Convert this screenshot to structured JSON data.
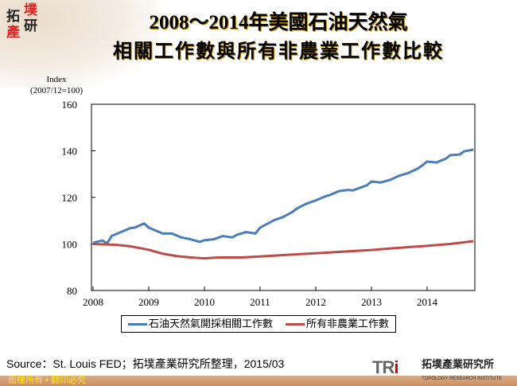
{
  "logo": {
    "chars": [
      "拓",
      "墣",
      "產",
      "研"
    ]
  },
  "title": {
    "line1": "2008～2014年美國石油天然氣",
    "line2": "相關工作數與所有非農業工作數比較"
  },
  "footer": {
    "source": "Source：St. Louis FED；拓墣產業研究所整理，2015/03",
    "copyright": "版權所有 • 翻印必究",
    "brand_logo": "TRi",
    "brand_zh": "拓墣產業研究所",
    "brand_en": "TOPOLOGY RESEARCH INSTITUTE"
  },
  "chart_data": {
    "type": "line",
    "ylabel": "Index\n(2007/12=100)",
    "ylabel_line1": "Index",
    "ylabel_line2": "(2007/12=100)",
    "ylim": [
      80,
      160
    ],
    "yticks": [
      "80",
      "100",
      "120",
      "140",
      "160"
    ],
    "xlim": [
      "2008-01",
      "2014-12"
    ],
    "xticks": [
      "2008",
      "2009",
      "2010",
      "2011",
      "2012",
      "2013",
      "2014"
    ],
    "grid": false,
    "legend": "bottom",
    "series": [
      {
        "name": "石油天然氣開採相關工作數",
        "color": "#4a7ebb",
        "points": [
          [
            "2008-01",
            100.5
          ],
          [
            "2008-03",
            101.5
          ],
          [
            "2008-04",
            100.2
          ],
          [
            "2008-05",
            103.4
          ],
          [
            "2008-07",
            105.1
          ],
          [
            "2008-09",
            106.8
          ],
          [
            "2008-10",
            107
          ],
          [
            "2008-12",
            108.8
          ],
          [
            "2009-01",
            107
          ],
          [
            "2009-04",
            104.5
          ],
          [
            "2009-06",
            104.5
          ],
          [
            "2009-08",
            102.8
          ],
          [
            "2009-10",
            102
          ],
          [
            "2009-12",
            100.9
          ],
          [
            "2010-01",
            101.6
          ],
          [
            "2010-03",
            102
          ],
          [
            "2010-05",
            103.4
          ],
          [
            "2010-07",
            102.8
          ],
          [
            "2010-08",
            103.9
          ],
          [
            "2010-10",
            105.1
          ],
          [
            "2010-12",
            104.5
          ],
          [
            "2011-01",
            107
          ],
          [
            "2011-04",
            110.2
          ],
          [
            "2011-06",
            111.6
          ],
          [
            "2011-08",
            113.8
          ],
          [
            "2011-09",
            115.3
          ],
          [
            "2011-11",
            117.3
          ],
          [
            "2012-01",
            118.7
          ],
          [
            "2012-03",
            120.4
          ],
          [
            "2012-04",
            121
          ],
          [
            "2012-06",
            122.7
          ],
          [
            "2012-08",
            123.2
          ],
          [
            "2012-09",
            123
          ],
          [
            "2012-12",
            125.2
          ],
          [
            "2013-01",
            126.8
          ],
          [
            "2013-03",
            126.4
          ],
          [
            "2013-05",
            127.5
          ],
          [
            "2013-07",
            129.3
          ],
          [
            "2013-09",
            130.5
          ],
          [
            "2013-11",
            132.4
          ],
          [
            "2013-12",
            133.8
          ],
          [
            "2014-01",
            135.4
          ],
          [
            "2014-03",
            135
          ],
          [
            "2014-05",
            136.6
          ],
          [
            "2014-06",
            138.1
          ],
          [
            "2014-08",
            138.4
          ],
          [
            "2014-09",
            139.8
          ],
          [
            "2014-11",
            140.5
          ]
        ]
      },
      {
        "name": "所有非農業工作數",
        "color": "#be4b48",
        "points": [
          [
            "2008-01",
            100
          ],
          [
            "2008-06",
            99.6
          ],
          [
            "2008-09",
            99
          ],
          [
            "2009-01",
            97.5
          ],
          [
            "2009-04",
            95.8
          ],
          [
            "2009-07",
            94.8
          ],
          [
            "2009-10",
            94.2
          ],
          [
            "2010-01",
            93.8
          ],
          [
            "2010-04",
            94.2
          ],
          [
            "2010-09",
            94.2
          ],
          [
            "2011-01",
            94.6
          ],
          [
            "2011-06",
            95.2
          ],
          [
            "2012-01",
            96.0
          ],
          [
            "2012-06",
            96.6
          ],
          [
            "2013-01",
            97.4
          ],
          [
            "2013-06",
            98.2
          ],
          [
            "2014-01",
            99.2
          ],
          [
            "2014-06",
            100.0
          ],
          [
            "2014-11",
            101.2
          ]
        ]
      }
    ]
  }
}
